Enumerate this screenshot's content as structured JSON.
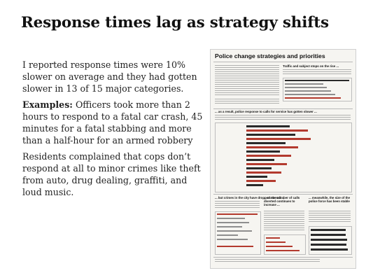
{
  "slide": {
    "title": "Response times lag as strategy shifts",
    "p1": "I reported response times were 10% slower on average and they had gotten slower in 13 of 15 major categories.",
    "p2_label": "Examples:",
    "p2_text": " Officers took more than 2 hours to respond to a fatal car crash, 45 minutes for a fatal stabbing and more than a half-hour for an armed robbery",
    "p3": "Residents complained that cops don’t respond at all to minor crimes like theft from auto, drug dealing, graffiti, and loud music."
  },
  "graphic": {
    "title": "Police change strategies and priorities",
    "sub1": "Traffic and subject stops on the rise ...",
    "sub2": "... as a result, police response to calls for service has gotten slower ...",
    "sub3": "... but crimes in the city have dropped overall ...",
    "sub4": "... as the number of calls diverted continues to increase ...",
    "sub5": "... meanwhile, the size of the police force has been stable"
  }
}
